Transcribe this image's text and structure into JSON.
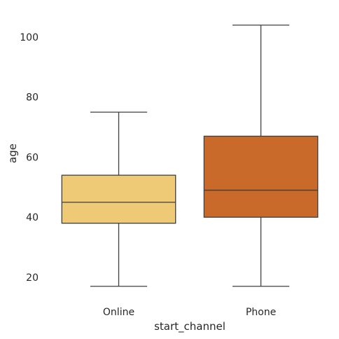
{
  "chart_data": {
    "type": "box",
    "xlabel": "start_channel",
    "ylabel": "age",
    "categories": [
      "Online",
      "Phone"
    ],
    "ylim": [
      12.5,
      107
    ],
    "yticks": [
      20,
      40,
      60,
      80,
      100
    ],
    "grid": false,
    "boxes": [
      {
        "category": "Online",
        "whisker_low": 17,
        "q1": 38,
        "median": 45,
        "q3": 54,
        "whisker_high": 75,
        "color": "#EECA76"
      },
      {
        "category": "Phone",
        "whisker_low": 17,
        "q1": 40,
        "median": 49,
        "q3": 67,
        "whisker_high": 104,
        "color": "#C96A2A"
      }
    ]
  }
}
